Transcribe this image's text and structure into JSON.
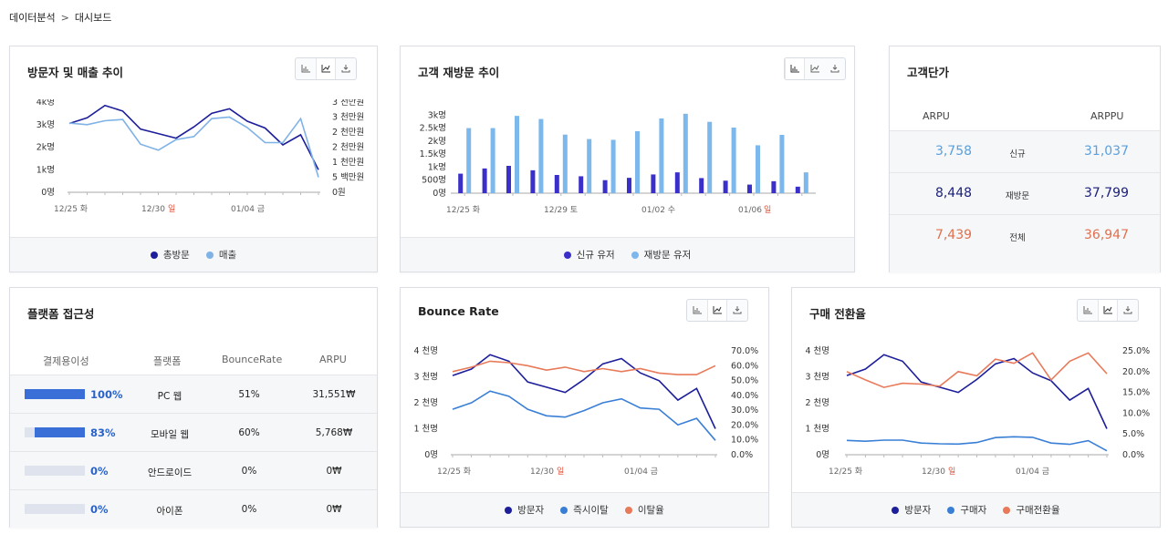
{
  "breadcrumb": {
    "parent": "데이터분석",
    "current": "대시보드"
  },
  "cards": {
    "visitors": {
      "title": "방문자 및 매출 추이",
      "legend": [
        {
          "label": "총방문",
          "color": "#1c1e9a"
        },
        {
          "label": "매출",
          "color": "#7fb2e6"
        }
      ],
      "x_ticks": [
        "12/25 화",
        "12/30",
        "일",
        "01/04 금"
      ]
    },
    "revisit": {
      "title": "고객 재방문 추이",
      "legend": [
        {
          "label": "신규 유저",
          "color": "#3a2fc9"
        },
        {
          "label": "재방문 유저",
          "color": "#7db8ec"
        }
      ],
      "x_ticks": [
        "12/25 화",
        "12/29 토",
        "01/02 수",
        "01/06",
        "일"
      ]
    },
    "arpu": {
      "title": "고객단가",
      "col1": "ARPU",
      "col2": "ARPPU",
      "rows": [
        {
          "v1": "3,758",
          "label": "신규",
          "v2": "31,037",
          "color": "#5aa0dc"
        },
        {
          "v1": "8,448",
          "label": "재방문",
          "v2": "37,799",
          "color": "#1b1f7a"
        },
        {
          "v1": "7,439",
          "label": "전체",
          "v2": "36,947",
          "color": "#e0704f"
        }
      ]
    },
    "platform": {
      "title": "플랫폼 접근성",
      "headers": [
        "결제용이성",
        "플랫폼",
        "BounceRate",
        "ARPU"
      ],
      "rows": [
        {
          "pct": "100%",
          "fill": 1.0,
          "name": "PC 웹",
          "bounce": "51%",
          "arpu": "31,551₩"
        },
        {
          "pct": "83%",
          "fill": 0.83,
          "name": "모바일 웹",
          "bounce": "60%",
          "arpu": "5,768₩"
        },
        {
          "pct": "0%",
          "fill": 0.0,
          "name": "안드로이드",
          "bounce": "0%",
          "arpu": "0₩"
        },
        {
          "pct": "0%",
          "fill": 0.0,
          "name": "아이폰",
          "bounce": "0%",
          "arpu": "0₩"
        }
      ]
    },
    "bounce": {
      "title": "Bounce Rate",
      "legend": [
        {
          "label": "방문자",
          "color": "#1c1e9a"
        },
        {
          "label": "즉시이탈",
          "color": "#3a7fd6"
        },
        {
          "label": "이탈율",
          "color": "#e87a5a"
        }
      ],
      "x_ticks": [
        "12/25 화",
        "12/30",
        "일",
        "01/04 금"
      ]
    },
    "conversion": {
      "title": "구매 전환율",
      "legend": [
        {
          "label": "방문자",
          "color": "#1c1e9a"
        },
        {
          "label": "구매자",
          "color": "#3a7fd6"
        },
        {
          "label": "구매전환율",
          "color": "#e87a5a"
        }
      ],
      "x_ticks": [
        "12/25 화",
        "12/30",
        "일",
        "01/04 금"
      ]
    }
  },
  "chart_data": [
    {
      "type": "line",
      "title": "방문자 및 매출 추이",
      "y_left_ticks": [
        "0명",
        "1k명",
        "2k명",
        "3k명",
        "4k명"
      ],
      "y_left_range": [
        0,
        4000
      ],
      "y_right_ticks": [
        "0원",
        "5 백만원",
        "1 천만원",
        "2 천만원",
        "2 천만원",
        "3 천만원",
        "3 천만원"
      ],
      "y_right_range": [
        0,
        30
      ],
      "series": [
        {
          "name": "총방문",
          "axis": "left",
          "color": "#1c1e9a",
          "values": [
            3050,
            3300,
            3850,
            3600,
            2800,
            2600,
            2400,
            2900,
            3500,
            3700,
            3150,
            2850,
            2100,
            2550,
            1000
          ]
        },
        {
          "name": "매출",
          "axis": "right",
          "color": "#7fb2e6",
          "values": [
            23,
            22.5,
            23.8,
            24.2,
            16,
            14,
            17.5,
            18.5,
            24.5,
            25,
            21.5,
            16.5,
            16.5,
            24.5,
            5
          ]
        }
      ]
    },
    {
      "type": "bar",
      "title": "고객 재방문 추이",
      "y_ticks": [
        "0명",
        "500명",
        "1k명",
        "1.5k명",
        "2k명",
        "2.5k명",
        "3k명"
      ],
      "y_range": [
        0,
        3500
      ],
      "series": [
        {
          "name": "신규 유저",
          "color": "#3a2fc9",
          "values": [
            750,
            950,
            1050,
            880,
            700,
            650,
            500,
            590,
            720,
            800,
            580,
            480,
            330,
            460,
            250
          ]
        },
        {
          "name": "재방문 유저",
          "color": "#7db8ec",
          "values": [
            2500,
            2500,
            2970,
            2850,
            2250,
            2080,
            2050,
            2380,
            2870,
            3050,
            2740,
            2520,
            1840,
            2240,
            800
          ]
        }
      ]
    },
    {
      "type": "line",
      "title": "Bounce Rate",
      "y_left_ticks": [
        "0명",
        "1 천명",
        "2 천명",
        "3 천명",
        "4 천명"
      ],
      "y_left_range": [
        0,
        4000
      ],
      "y_right_ticks": [
        "0.0%",
        "10.0%",
        "20.0%",
        "30.0%",
        "40.0%",
        "50.0%",
        "60.0%",
        "70.0%"
      ],
      "y_right_range": [
        0,
        70
      ],
      "series": [
        {
          "name": "방문자",
          "axis": "left",
          "color": "#1c1e9a",
          "values": [
            3050,
            3300,
            3850,
            3600,
            2800,
            2600,
            2400,
            2900,
            3500,
            3700,
            3150,
            2850,
            2100,
            2550,
            1000
          ]
        },
        {
          "name": "즉시이탈",
          "axis": "left",
          "color": "#3a7fd6",
          "values": [
            1750,
            2000,
            2450,
            2250,
            1750,
            1500,
            1450,
            1700,
            2000,
            2150,
            1800,
            1750,
            1150,
            1400,
            550
          ]
        },
        {
          "name": "이탈율",
          "axis": "right",
          "color": "#e87a5a",
          "values": [
            56,
            59,
            63,
            62,
            60,
            57,
            59,
            56,
            58,
            56,
            58,
            55,
            54,
            54,
            60
          ]
        }
      ]
    },
    {
      "type": "line",
      "title": "구매 전환율",
      "y_left_ticks": [
        "0명",
        "1 천명",
        "2 천명",
        "3 천명",
        "4 천명"
      ],
      "y_left_range": [
        0,
        4000
      ],
      "y_right_ticks": [
        "0.0%",
        "5.0%",
        "10.0%",
        "15.0%",
        "20.0%",
        "25.0%"
      ],
      "y_right_range": [
        0,
        25
      ],
      "series": [
        {
          "name": "방문자",
          "axis": "left",
          "color": "#1c1e9a",
          "values": [
            3050,
            3300,
            3850,
            3600,
            2800,
            2600,
            2400,
            2900,
            3500,
            3700,
            3150,
            2850,
            2100,
            2550,
            1000
          ]
        },
        {
          "name": "구매자",
          "axis": "left",
          "color": "#3a7fd6",
          "values": [
            550,
            520,
            560,
            560,
            450,
            420,
            410,
            470,
            660,
            690,
            670,
            450,
            400,
            540,
            150
          ]
        },
        {
          "name": "구매전환율",
          "axis": "right",
          "color": "#e87a5a",
          "values": [
            20,
            18,
            16.2,
            17.2,
            17,
            16.5,
            20,
            19,
            23,
            22,
            24.5,
            18,
            22.5,
            24.5,
            19.5
          ]
        }
      ]
    }
  ]
}
